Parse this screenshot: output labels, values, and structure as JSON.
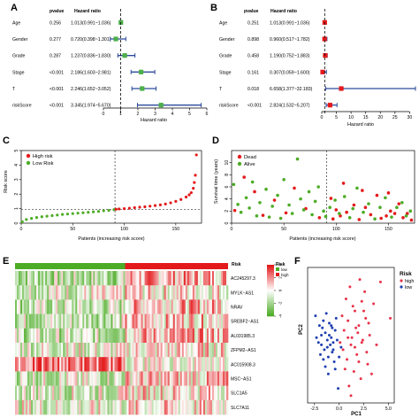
{
  "panel_letters": [
    "A",
    "B",
    "C",
    "D",
    "E",
    "F"
  ],
  "colors": {
    "high": "#e31a1c",
    "low": "#4dac26",
    "pca_high": "#e8324a",
    "pca_low": "#1f3fb0",
    "forest_A": "#4daf4a",
    "forest_B": "#e41a1c",
    "ci_line": "#2b4a9c",
    "heat_high": "#e31a1c",
    "heat_mid": "#ffffff",
    "heat_low": "#4dac26"
  },
  "chart_data": [
    {
      "panel": "A",
      "type": "forest",
      "col_headers": [
        "pvalue",
        "Hazard ratio"
      ],
      "xlabel": "Hazard ratio",
      "xlim": [
        0,
        6
      ],
      "ticks": [
        0,
        1,
        2,
        3,
        4,
        5,
        6
      ],
      "ref_line": 1,
      "rows": [
        {
          "name": "Age",
          "pvalue": "0.256",
          "hr_text": "1.013(0.991~1.036)",
          "hr": 1.013,
          "lo": 0.991,
          "hi": 1.036
        },
        {
          "name": "Gender",
          "pvalue": "0.277",
          "hr_text": "0.720(0.398~1.301)",
          "hr": 0.72,
          "lo": 0.398,
          "hi": 1.301
        },
        {
          "name": "Grade",
          "pvalue": "0.287",
          "hr_text": "1.237(0.836~1.830)",
          "hr": 1.237,
          "lo": 0.836,
          "hi": 1.83
        },
        {
          "name": "Stage",
          "pvalue": "<0.001",
          "hr_text": "2.186(1.603~2.981)",
          "hr": 2.186,
          "lo": 1.603,
          "hi": 2.981
        },
        {
          "name": "T",
          "pvalue": "<0.001",
          "hr_text": "2.246(1.652~3.052)",
          "hr": 2.246,
          "lo": 1.652,
          "hi": 3.052
        },
        {
          "name": "riskScore",
          "pvalue": "<0.001",
          "hr_text": "3.345(1.974~5.670)",
          "hr": 3.345,
          "lo": 1.974,
          "hi": 5.67
        }
      ]
    },
    {
      "panel": "B",
      "type": "forest",
      "col_headers": [
        "pvalue",
        "Hazard ratio"
      ],
      "xlabel": "Hazard ratio",
      "xlim": [
        0,
        32
      ],
      "ticks": [
        0,
        5,
        10,
        15,
        20,
        25,
        30
      ],
      "ref_line": 1,
      "rows": [
        {
          "name": "Age",
          "pvalue": "0.251",
          "hr_text": "1.013(0.991~1.036)",
          "hr": 1.013,
          "lo": 0.991,
          "hi": 1.036
        },
        {
          "name": "Gender",
          "pvalue": "0.898",
          "hr_text": "0.960(0.517~1.782)",
          "hr": 0.96,
          "lo": 0.517,
          "hi": 1.782
        },
        {
          "name": "Grade",
          "pvalue": "0.458",
          "hr_text": "1.190(0.752~1.883)",
          "hr": 1.19,
          "lo": 0.752,
          "hi": 1.883
        },
        {
          "name": "Stage",
          "pvalue": "0.161",
          "hr_text": "0.307(0.059~1.600)",
          "hr": 0.307,
          "lo": 0.059,
          "hi": 1.6
        },
        {
          "name": "T",
          "pvalue": "0.018",
          "hr_text": "6.658(1.377~32.183)",
          "hr": 6.658,
          "lo": 1.377,
          "hi": 32.183
        },
        {
          "name": "riskScore",
          "pvalue": "<0.001",
          "hr_text": "2.824(1.532~5.207)",
          "hr": 2.824,
          "lo": 1.532,
          "hi": 5.207
        }
      ]
    },
    {
      "panel": "C",
      "type": "scatter",
      "xlabel": "Patients (increasing risk score)",
      "ylabel": "Risk score",
      "xlim": [
        0,
        175
      ],
      "ylim": [
        0,
        5
      ],
      "xticks": [
        0,
        50,
        100,
        150
      ],
      "yticks": [
        0,
        1,
        2,
        3,
        4,
        5
      ],
      "cutoff_patient": 91,
      "cutoff_score": 0.95,
      "legend": [
        "High risk",
        "Low Risk"
      ],
      "series": [
        {
          "name": "Low Risk",
          "x": [
            1,
            5,
            10,
            15,
            20,
            25,
            30,
            35,
            40,
            45,
            50,
            55,
            60,
            65,
            70,
            75,
            80,
            85,
            90
          ],
          "y": [
            0.1,
            0.25,
            0.33,
            0.39,
            0.44,
            0.48,
            0.52,
            0.56,
            0.6,
            0.63,
            0.66,
            0.69,
            0.72,
            0.75,
            0.78,
            0.81,
            0.85,
            0.88,
            0.93
          ]
        },
        {
          "name": "High risk",
          "x": [
            92,
            95,
            100,
            105,
            110,
            115,
            120,
            125,
            130,
            135,
            140,
            145,
            150,
            155,
            160,
            163,
            165,
            167,
            168,
            169,
            170
          ],
          "y": [
            0.96,
            0.98,
            1.0,
            1.03,
            1.07,
            1.1,
            1.13,
            1.17,
            1.21,
            1.26,
            1.32,
            1.4,
            1.5,
            1.63,
            1.8,
            1.95,
            2.1,
            2.4,
            2.8,
            3.3,
            4.7
          ]
        }
      ]
    },
    {
      "panel": "D",
      "type": "scatter",
      "xlabel": "Patients (increasing risk score)",
      "ylabel": "Survival time (years)",
      "xlim": [
        0,
        175
      ],
      "ylim": [
        0,
        12
      ],
      "xticks": [
        0,
        50,
        100,
        150
      ],
      "yticks": [
        0,
        2,
        4,
        6,
        8,
        10
      ],
      "cutoff_patient": 91,
      "legend": [
        "Dead",
        "Alive"
      ],
      "series": [
        {
          "name": "Dead",
          "x": [
            3,
            12,
            22,
            30,
            41,
            52,
            60,
            71,
            84,
            95,
            100,
            104,
            110,
            117,
            122,
            128,
            133,
            139,
            143,
            148,
            152,
            156,
            160,
            164,
            168,
            172,
            107,
            125,
            150,
            97
          ],
          "y": [
            2.1,
            7.6,
            5.2,
            1.3,
            3.8,
            1.7,
            5.8,
            2.4,
            0.9,
            4.1,
            2.2,
            1.2,
            1.8,
            3.0,
            0.6,
            2.6,
            1.4,
            4.6,
            0.8,
            1.2,
            2.0,
            1.6,
            3.2,
            0.9,
            1.6,
            0.5,
            6.6,
            5.4,
            5.0,
            0.7
          ]
        },
        {
          "name": "Alive",
          "x": [
            2,
            6,
            9,
            14,
            17,
            20,
            24,
            27,
            33,
            36,
            39,
            44,
            47,
            50,
            55,
            58,
            63,
            66,
            69,
            74,
            77,
            80,
            83,
            88,
            90,
            94,
            99,
            103,
            108,
            113,
            116,
            120,
            126,
            131,
            137,
            142,
            147,
            153,
            158,
            163,
            167,
            171
          ],
          "y": [
            6.4,
            3.1,
            1.8,
            4.2,
            2.5,
            6.8,
            1.2,
            3.4,
            5.6,
            1.0,
            2.8,
            4.6,
            0.8,
            7.2,
            3.0,
            1.6,
            10.6,
            4.0,
            2.2,
            5.2,
            1.4,
            3.6,
            6.0,
            2.0,
            1.1,
            2.6,
            3.8,
            1.6,
            4.4,
            0.9,
            2.4,
            5.8,
            1.8,
            3.2,
            0.7,
            2.6,
            4.2,
            1.0,
            2.6,
            3.4,
            1.2,
            2.0
          ]
        }
      ]
    },
    {
      "panel": "E",
      "type": "heatmap",
      "annotation_label": "Risk",
      "annotation_legend": [
        "low",
        "high"
      ],
      "rows": [
        "AC245297.3",
        "MYLK−AS1",
        "NRAV",
        "SREBF2−AS1",
        "AL031985.3",
        "ZFPM2−AS1",
        "AC015908.3",
        "MSC−AS1",
        "SLC1A5",
        "SLC7A11"
      ],
      "scale_ticks": [
        4,
        2,
        0,
        -2,
        -4
      ],
      "low_fraction": 0.52
    },
    {
      "panel": "F",
      "type": "scatter",
      "xlabel": "PC1",
      "ylabel": "PC2",
      "xlim": [
        -3.2,
        5.6
      ],
      "ylim": [
        -2.2,
        3.4
      ],
      "xticks": [
        -2.5,
        0.0,
        2.5,
        5.0
      ],
      "xtick_labels": [
        "-2.5",
        "0.0",
        "2.5",
        "5.0"
      ],
      "legend_title": "Risk",
      "legend": [
        "high",
        "low"
      ],
      "series": [
        {
          "name": "high",
          "x": [
            0.1,
            0.5,
            0.9,
            1.3,
            1.6,
            2.0,
            2.3,
            2.7,
            3.1,
            3.5,
            0.8,
            1.2,
            1.8,
            2.4,
            2.9,
            0.3,
            0.7,
            1.1,
            1.5,
            1.9,
            2.2,
            2.6,
            3.0,
            3.8,
            4.2,
            5.2,
            1.0,
            1.4,
            2.1,
            2.8,
            0.6,
            1.7,
            2.5,
            3.3,
            0.4,
            1.2,
            2.0,
            0.9,
            1.6,
            2.3
          ],
          "y": [
            0.3,
            0.8,
            1.2,
            0.5,
            1.6,
            1.0,
            2.0,
            1.3,
            0.6,
            1.9,
            -0.4,
            0.2,
            -0.2,
            0.4,
            -0.6,
            1.4,
            2.1,
            2.6,
            -0.9,
            0.7,
            -1.2,
            2.4,
            1.1,
            0.2,
            2.8,
            1.3,
            -1.5,
            1.8,
            2.9,
            -0.1,
            -0.8,
            0.9,
            1.6,
            -1.0,
            0.0,
            -1.9,
            -0.5,
            0.5,
            0.1,
            0.3
          ]
        },
        {
          "name": "low",
          "x": [
            -2.3,
            -2.0,
            -1.8,
            -1.6,
            -1.4,
            -1.2,
            -1.0,
            -0.8,
            -0.6,
            -0.4,
            -0.2,
            0.0,
            -1.9,
            -1.5,
            -1.1,
            -0.7,
            -0.3,
            -1.7,
            -1.3,
            -0.9,
            -0.5,
            -2.1,
            -1.0,
            -0.4,
            -1.6,
            -1.2,
            -0.8,
            0.2,
            -1.4,
            -0.6,
            -2.4,
            -0.1,
            -1.8,
            -1.1,
            -0.7
          ],
          "y": [
            0.5,
            1.0,
            0.2,
            1.2,
            0.7,
            0.1,
            1.1,
            0.5,
            0.0,
            0.8,
            0.4,
            -0.3,
            -0.2,
            0.0,
            -0.3,
            -0.1,
            1.3,
            0.9,
            1.5,
            0.2,
            -0.5,
            0.3,
            0.6,
            -0.8,
            -0.4,
            0.4,
            1.0,
            0.1,
            -0.7,
            0.3,
            1.4,
            -1.6,
            0.6,
            -1.0,
            0.9
          ]
        }
      ]
    }
  ]
}
